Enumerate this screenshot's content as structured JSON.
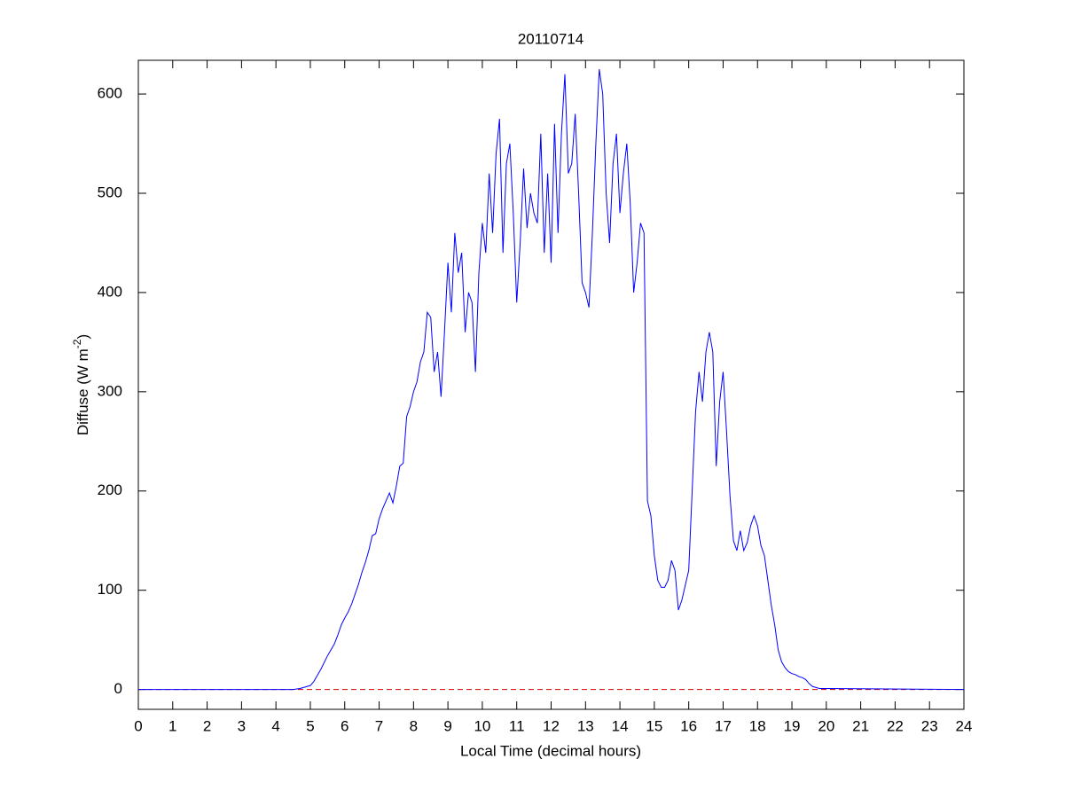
{
  "chart_data": {
    "type": "line",
    "title": "20110714",
    "xlabel": "Local Time (decimal hours)",
    "ylabel": {
      "text": "Diffuse (W m",
      "superscript": "-2",
      "suffix": ")"
    },
    "x": [
      0,
      4.5,
      4.7,
      4.8,
      4.9,
      5.0,
      5.1,
      5.2,
      5.3,
      5.4,
      5.5,
      5.6,
      5.7,
      5.8,
      5.9,
      6.0,
      6.1,
      6.2,
      6.3,
      6.4,
      6.5,
      6.6,
      6.7,
      6.8,
      6.9,
      7.0,
      7.1,
      7.2,
      7.3,
      7.4,
      7.5,
      7.6,
      7.7,
      7.8,
      7.9,
      8.0,
      8.1,
      8.2,
      8.3,
      8.4,
      8.5,
      8.6,
      8.7,
      8.8,
      8.9,
      9.0,
      9.1,
      9.2,
      9.3,
      9.4,
      9.5,
      9.6,
      9.7,
      9.8,
      9.9,
      10.0,
      10.1,
      10.2,
      10.3,
      10.4,
      10.5,
      10.6,
      10.7,
      10.8,
      10.9,
      11.0,
      11.1,
      11.2,
      11.3,
      11.4,
      11.5,
      11.6,
      11.7,
      11.8,
      11.9,
      12.0,
      12.1,
      12.2,
      12.3,
      12.4,
      12.5,
      12.6,
      12.7,
      12.8,
      12.9,
      13.0,
      13.1,
      13.2,
      13.3,
      13.4,
      13.5,
      13.6,
      13.7,
      13.8,
      13.9,
      14.0,
      14.1,
      14.2,
      14.3,
      14.4,
      14.5,
      14.6,
      14.7,
      14.8,
      14.9,
      15.0,
      15.1,
      15.2,
      15.3,
      15.4,
      15.5,
      15.6,
      15.7,
      15.8,
      15.9,
      16.0,
      16.1,
      16.2,
      16.3,
      16.4,
      16.5,
      16.6,
      16.7,
      16.8,
      16.9,
      17.0,
      17.1,
      17.2,
      17.3,
      17.4,
      17.5,
      17.6,
      17.7,
      17.8,
      17.9,
      18.0,
      18.1,
      18.2,
      18.3,
      18.4,
      18.5,
      18.6,
      18.7,
      18.8,
      18.9,
      19.0,
      19.1,
      19.2,
      19.3,
      19.4,
      19.5,
      19.6,
      19.7,
      19.8,
      20.0,
      24
    ],
    "series": [
      {
        "color": "#0000ff",
        "values": [
          0,
          0,
          1,
          2,
          3,
          4,
          8,
          14,
          20,
          27,
          34,
          40,
          46,
          55,
          65,
          72,
          78,
          86,
          96,
          106,
          118,
          128,
          140,
          155,
          157,
          172,
          182,
          190,
          198,
          188,
          205,
          225,
          228,
          275,
          285,
          300,
          310,
          330,
          340,
          380,
          375,
          320,
          340,
          295,
          360,
          430,
          380,
          460,
          420,
          440,
          360,
          400,
          390,
          320,
          420,
          470,
          440,
          520,
          460,
          540,
          575,
          440,
          530,
          550,
          480,
          390,
          450,
          525,
          465,
          500,
          480,
          470,
          560,
          440,
          520,
          430,
          570,
          460,
          560,
          620,
          520,
          530,
          580,
          500,
          410,
          400,
          385,
          460,
          550,
          625,
          600,
          500,
          450,
          530,
          560,
          480,
          520,
          550,
          490,
          400,
          430,
          470,
          460,
          190,
          175,
          135,
          110,
          103,
          103,
          110,
          130,
          120,
          80,
          90,
          105,
          120,
          200,
          280,
          320,
          290,
          340,
          360,
          340,
          225,
          290,
          320,
          260,
          195,
          150,
          140,
          160,
          140,
          148,
          165,
          175,
          165,
          145,
          135,
          110,
          85,
          65,
          40,
          28,
          22,
          18,
          16,
          15,
          13,
          12,
          10,
          6,
          3,
          2,
          1,
          1,
          0
        ]
      }
    ],
    "reference_line": {
      "value": 0,
      "color": "#cc0000",
      "dashed": true
    },
    "xlim": [
      0,
      24
    ],
    "xticks": [
      0,
      1,
      2,
      3,
      4,
      5,
      6,
      7,
      8,
      9,
      10,
      11,
      12,
      13,
      14,
      15,
      16,
      17,
      18,
      19,
      20,
      21,
      22,
      23,
      24
    ],
    "ylim": [
      -20,
      634
    ],
    "yticks": [
      0,
      100,
      200,
      300,
      400,
      500,
      600
    ],
    "grid": false
  }
}
